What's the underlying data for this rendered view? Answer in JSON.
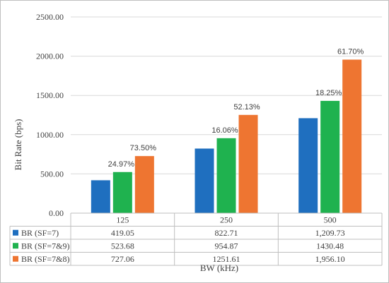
{
  "chart_data": {
    "type": "bar",
    "xlabel": "BW (kHz)",
    "ylabel": "Bit Rate (bps)",
    "ylim": [
      0,
      2500
    ],
    "yticks": [
      "0.00",
      "500.00",
      "1000.00",
      "1500.00",
      "2000.00",
      "2500.00"
    ],
    "categories": [
      "125",
      "250",
      "500"
    ],
    "series": [
      {
        "name": "BR (SF=7)",
        "color": "#1f6fbf",
        "values": [
          419.05,
          822.71,
          1209.73
        ],
        "labels": [
          "419.05",
          "822.71",
          "1,209.73"
        ],
        "annotations": [
          "",
          "",
          ""
        ]
      },
      {
        "name": "BR (SF=7&9)",
        "color": "#1fb24f",
        "values": [
          523.68,
          954.87,
          1430.48
        ],
        "labels": [
          "523.68",
          "954.87",
          "1430.48"
        ],
        "annotations": [
          "24.97%",
          "16.06%",
          "18.25%"
        ]
      },
      {
        "name": "BR (SF=7&8)",
        "color": "#ee7531",
        "values": [
          727.06,
          1251.61,
          1956.1
        ],
        "labels": [
          "727.06",
          "1251.61",
          "1,956.10"
        ],
        "annotations": [
          "73.50%",
          "52.13%",
          "61.70%"
        ]
      }
    ],
    "grid": true,
    "data_table": true
  }
}
